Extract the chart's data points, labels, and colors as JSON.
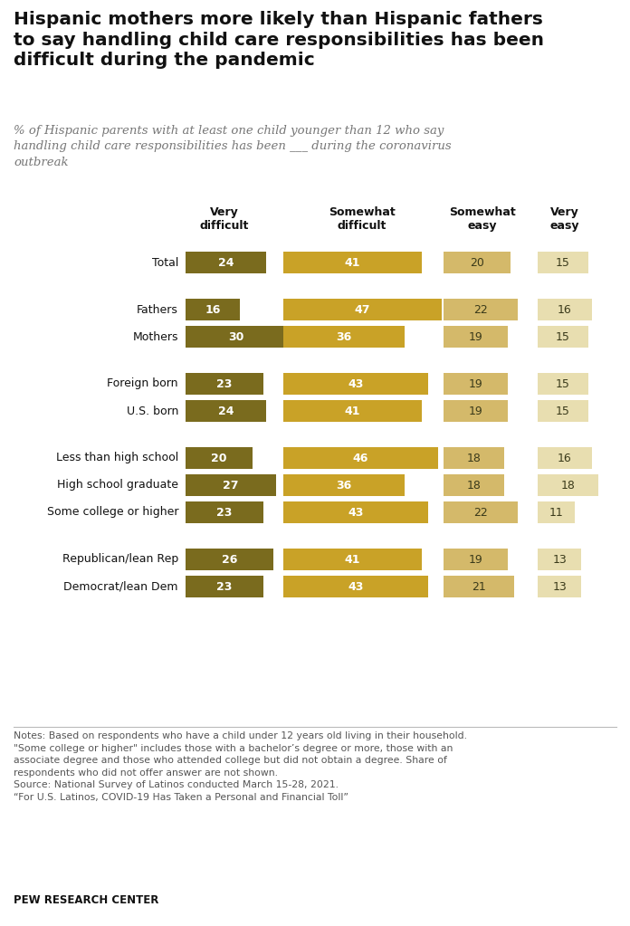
{
  "title": "Hispanic mothers more likely than Hispanic fathers\nto say handling child care responsibilities has been\ndifficult during the pandemic",
  "subtitle": "% of Hispanic parents with at least one child younger than 12 who say\nhandling child care responsibilities has been ___ during the coronavirus\noutbreak",
  "col_headers": [
    "Very\ndifficult",
    "Somewhat\ndifficult",
    "Somewhat\neasy",
    "Very\neasy"
  ],
  "rows": [
    {
      "label": "Total",
      "values": [
        24,
        41,
        20,
        15
      ],
      "group": 0
    },
    {
      "label": "Fathers",
      "values": [
        16,
        47,
        22,
        16
      ],
      "group": 1
    },
    {
      "label": "Mothers",
      "values": [
        30,
        36,
        19,
        15
      ],
      "group": 1
    },
    {
      "label": "Foreign born",
      "values": [
        23,
        43,
        19,
        15
      ],
      "group": 2
    },
    {
      "label": "U.S. born",
      "values": [
        24,
        41,
        19,
        15
      ],
      "group": 2
    },
    {
      "label": "Less than high school",
      "values": [
        20,
        46,
        18,
        16
      ],
      "group": 3
    },
    {
      "label": "High school graduate",
      "values": [
        27,
        36,
        18,
        18
      ],
      "group": 3
    },
    {
      "label": "Some college or higher",
      "values": [
        23,
        43,
        22,
        11
      ],
      "group": 3
    },
    {
      "label": "Republican/lean Rep",
      "values": [
        26,
        41,
        19,
        13
      ],
      "group": 4
    },
    {
      "label": "Democrat/lean Dem",
      "values": [
        23,
        43,
        21,
        13
      ],
      "group": 4
    }
  ],
  "bar_colors": [
    "#7a6b1e",
    "#c9a227",
    "#d4b96a",
    "#e8deb0"
  ],
  "text_colors": [
    "#ffffff",
    "#ffffff",
    "#3a3a1a",
    "#3a3a1a"
  ],
  "notes_text": "Notes: Based on respondents who have a child under 12 years old living in their household.\n\"Some college or higher\" includes those with a bachelor’s degree or more, those with an\nassociate degree and those who attended college but did not obtain a degree. Share of\nrespondents who did not offer answer are not shown.\nSource: National Survey of Latinos conducted March 15-28, 2021.\n“For U.S. Latinos, COVID-19 Has Taken a Personal and Financial Toll”",
  "source_label": "PEW RESEARCH CENTER",
  "fig_width": 6.96,
  "fig_height": 10.23,
  "dpi": 100
}
